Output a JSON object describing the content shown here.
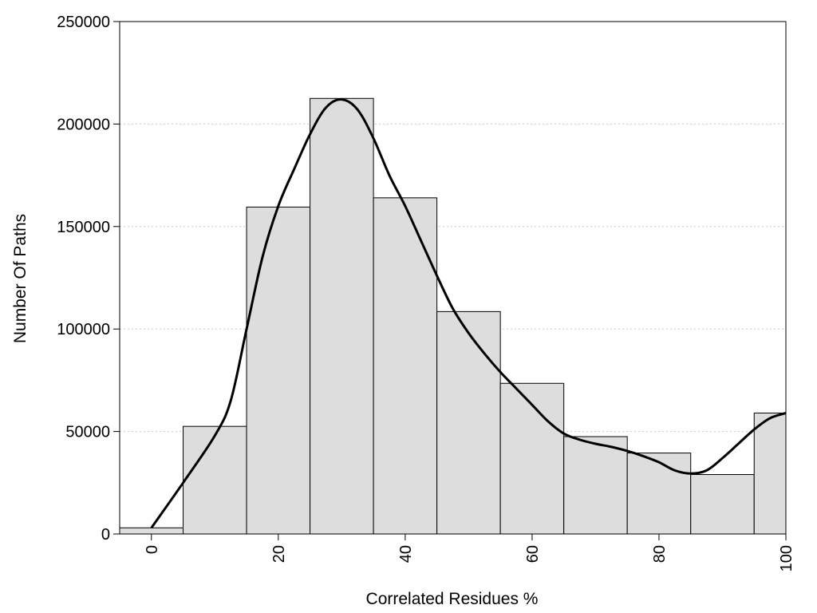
{
  "chart_data": {
    "type": "bar",
    "title": "",
    "xlabel": "Correlated Residues %",
    "ylabel": "Number Of Paths",
    "grid": true,
    "xlim": [
      -5,
      100
    ],
    "ylim": [
      0,
      250000
    ],
    "x_ticks": [
      0,
      20,
      40,
      60,
      80,
      100
    ],
    "y_ticks": [
      0,
      50000,
      100000,
      150000,
      200000,
      250000
    ],
    "bin_width": 10,
    "bins": [
      {
        "x": 0,
        "value": 3000
      },
      {
        "x": 10,
        "value": 52500
      },
      {
        "x": 20,
        "value": 159500
      },
      {
        "x": 30,
        "value": 212500
      },
      {
        "x": 40,
        "value": 164000
      },
      {
        "x": 50,
        "value": 108500
      },
      {
        "x": 60,
        "value": 73500
      },
      {
        "x": 70,
        "value": 47500
      },
      {
        "x": 80,
        "value": 39500
      },
      {
        "x": 90,
        "value": 29000
      },
      {
        "x": 100,
        "value": 59000
      }
    ],
    "curve": [
      [
        0,
        3000
      ],
      [
        5,
        25000
      ],
      [
        10,
        48000
      ],
      [
        12.5,
        65000
      ],
      [
        15,
        100000
      ],
      [
        17.5,
        135000
      ],
      [
        20,
        160000
      ],
      [
        22.5,
        178000
      ],
      [
        25,
        195000
      ],
      [
        27.5,
        208000
      ],
      [
        30,
        212000
      ],
      [
        32.5,
        207000
      ],
      [
        35,
        193000
      ],
      [
        37.5,
        175000
      ],
      [
        40,
        160000
      ],
      [
        42.5,
        143000
      ],
      [
        45,
        126000
      ],
      [
        47.5,
        110000
      ],
      [
        50,
        98000
      ],
      [
        52.5,
        88000
      ],
      [
        55,
        79000
      ],
      [
        57.5,
        71000
      ],
      [
        60,
        63000
      ],
      [
        62.5,
        55000
      ],
      [
        65,
        49000
      ],
      [
        67.5,
        46000
      ],
      [
        70,
        44000
      ],
      [
        72.5,
        42500
      ],
      [
        75,
        40500
      ],
      [
        77.5,
        38000
      ],
      [
        80,
        35000
      ],
      [
        82.5,
        31000
      ],
      [
        85,
        29500
      ],
      [
        87.5,
        31000
      ],
      [
        90,
        37000
      ],
      [
        92.5,
        44000
      ],
      [
        95,
        51000
      ],
      [
        97.5,
        56500
      ],
      [
        100,
        59000
      ]
    ],
    "colors": {
      "bar_fill": "#dddddd",
      "bar_stroke": "#000000",
      "curve": "#000000",
      "grid": "#cccccc"
    }
  }
}
